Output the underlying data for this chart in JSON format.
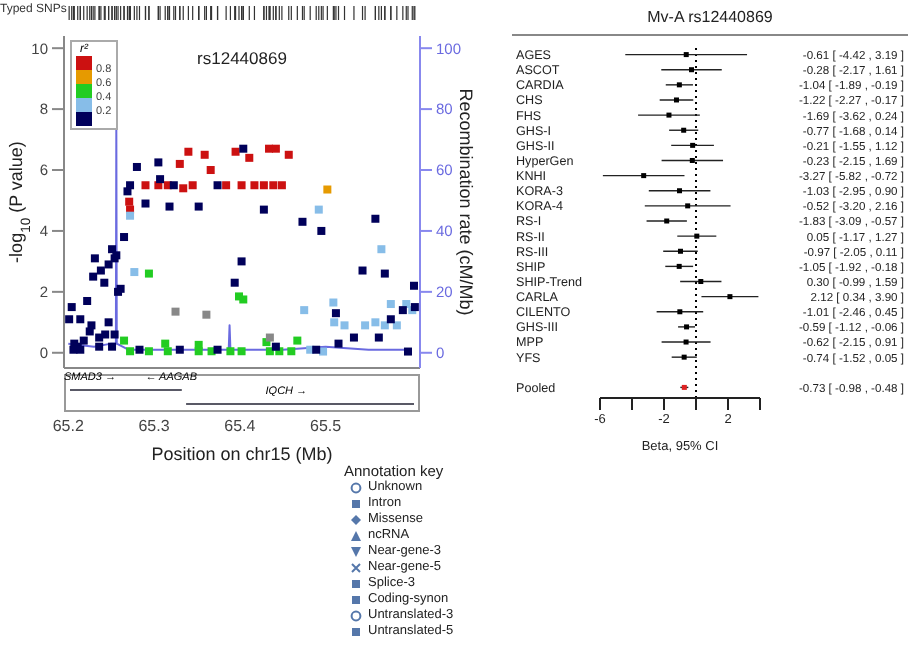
{
  "chart_data": [
    {
      "type": "scatter",
      "title": "rs12440869",
      "xlabel": "Position on chr15 (Mb)",
      "ylabel": "-log$_{10}$ (P value)",
      "y2label": "Recombination rate (cM/Mb)",
      "legend_title": "r²",
      "xlim": [
        65.195,
        65.61
      ],
      "xticks": [
        65.2,
        65.3,
        65.4,
        65.5
      ],
      "ylim": [
        -0.5,
        10.4
      ],
      "yticks": [
        0,
        2,
        4,
        6,
        8,
        10
      ],
      "y2lim": [
        -5,
        104
      ],
      "y2ticks": [
        0,
        20,
        40,
        60,
        80,
        100
      ],
      "annotations": [
        "Typed SNPs",
        "SMAD3 →",
        "← AAGAB",
        "IQCH →",
        "0.8",
        "0.6",
        "0.4",
        "0.2",
        "Annotation key",
        "Unknown",
        "Intron",
        "Missense",
        "ncRNA",
        "Near-gene-3",
        "Near-gene-5",
        "Splice-3",
        "Coding-synon",
        "Untranslated-3",
        "Untranslated-5"
      ],
      "series": [
        {
          "color": "#cc1111",
          "marker": "square",
          "x": [
            65.271,
            65.272,
            65.29,
            65.305,
            65.316,
            65.33,
            65.34,
            65.334,
            65.345,
            65.359,
            65.366,
            65.384,
            65.395,
            65.411,
            65.402,
            65.417,
            65.434,
            65.442,
            65.457,
            65.449,
            65.439,
            65.428
          ],
          "values": [
            4.96,
            4.7,
            5.5,
            5.5,
            5.5,
            6.2,
            6.6,
            5.4,
            5.5,
            6.5,
            6.0,
            5.5,
            6.6,
            6.4,
            5.5,
            5.5,
            6.7,
            6.7,
            6.5,
            5.5,
            5.5,
            5.5
          ]
        },
        {
          "color": "#e69a00",
          "marker": "square",
          "x": [
            65.502
          ],
          "values": [
            5.36
          ]
        },
        {
          "color": "#22cc22",
          "marker": "square",
          "x": [
            65.294,
            65.399,
            65.404,
            65.265,
            65.272,
            65.294,
            65.316,
            65.352,
            65.367,
            65.389,
            65.402,
            65.435,
            65.446,
            65.46,
            65.467,
            65.313,
            65.352,
            65.431
          ],
          "values": [
            2.6,
            1.85,
            1.75,
            0.4,
            0.05,
            0.05,
            0.05,
            0.05,
            0.05,
            0.05,
            0.05,
            0.05,
            0.05,
            0.05,
            0.4,
            0.3,
            0.26,
            0.35
          ]
        },
        {
          "color": "#87bde8",
          "marker": "square",
          "x": [
            65.272,
            65.277,
            65.492,
            65.475,
            65.509,
            65.51,
            65.522,
            65.546,
            65.558,
            65.569,
            65.576,
            65.583,
            65.594,
            65.565,
            65.482,
            65.497,
            65.601
          ],
          "values": [
            4.5,
            2.65,
            4.7,
            1.4,
            1.65,
            1.0,
            0.9,
            0.9,
            1.0,
            0.9,
            1.6,
            0.9,
            1.6,
            3.4,
            0.1,
            0.04,
            1.4
          ]
        },
        {
          "color": "#00005a",
          "marker": "square",
          "x": [
            65.201,
            65.204,
            65.207,
            65.211,
            65.214,
            65.218,
            65.222,
            65.225,
            65.227,
            65.229,
            65.231,
            65.236,
            65.238,
            65.242,
            65.243,
            65.247,
            65.247,
            65.251,
            65.251,
            65.254,
            65.256,
            65.258,
            65.206,
            65.236,
            65.214,
            65.254,
            65.261,
            65.265,
            65.269,
            65.272,
            65.28,
            65.29,
            65.305,
            65.307,
            65.318,
            65.323,
            65.352,
            65.374,
            65.394,
            65.402,
            65.404,
            65.428,
            65.473,
            65.495,
            65.512,
            65.515,
            65.533,
            65.543,
            65.558,
            65.562,
            65.569,
            65.576,
            65.59,
            65.603,
            65.604,
            65.596,
            65.283,
            65.33,
            65.374,
            65.442,
            65.489
          ],
          "values": [
            1.1,
            1.5,
            0.3,
            0.2,
            1.1,
            0.4,
            1.7,
            0.7,
            0.9,
            2.5,
            3.1,
            0.5,
            2.7,
            2.3,
            0.6,
            2.9,
            1.0,
            3.4,
            0.2,
            3.1,
            3.2,
            2.0,
            0.1,
            0.2,
            0.1,
            0.6,
            2.1,
            3.8,
            5.3,
            5.5,
            6.1,
            4.9,
            6.25,
            5.7,
            4.8,
            5.5,
            4.8,
            5.5,
            2.3,
            3.0,
            6.7,
            4.7,
            4.3,
            4.0,
            1.3,
            0.3,
            0.5,
            2.7,
            4.4,
            0.5,
            2.6,
            1.1,
            1.4,
            2.2,
            1.5,
            0.04,
            0.1,
            0.1,
            0.1,
            0.2,
            0.1
          ]
        },
        {
          "color": "#888888",
          "marker": "square",
          "x": [
            65.325,
            65.361,
            65.435
          ],
          "values": [
            1.35,
            1.25,
            0.5
          ]
        },
        {
          "type": "line",
          "axis": "y2",
          "marker": "none",
          "color": "#6a6ae0",
          "x": [
            65.2,
            65.23,
            65.25,
            65.2555,
            65.256,
            65.2565,
            65.27,
            65.3,
            65.35,
            65.387,
            65.388,
            65.389,
            65.45,
            65.5,
            65.55,
            65.6
          ],
          "values": [
            3,
            2,
            3,
            3,
            75,
            3,
            1,
            1,
            1,
            1,
            9,
            1,
            1,
            2,
            1,
            1
          ]
        }
      ]
    },
    {
      "type": "scatter",
      "orientation": "horizontal",
      "title": "Mv-A  rs12440869",
      "xlabel": "Beta, 95% CI",
      "marker": "square",
      "xlim": [
        -6,
        4
      ],
      "xticks": [
        -6,
        {
          "value": -4,
          "label": null
        },
        -2,
        {
          "value": 0,
          "label": null
        },
        2,
        {
          "value": 4,
          "label": null
        }
      ],
      "ref_lines": [
        {
          "axis": "x",
          "value": 0,
          "line_style": "dotted",
          "color": "#000000"
        }
      ],
      "categories": [
        "AGES",
        "ASCOT",
        "CARDIA",
        "CHS",
        "FHS",
        "GHS-I",
        "GHS-II",
        "HyperGen",
        "KNHI",
        "KORA-3",
        "KORA-4",
        "RS-I",
        "RS-II",
        "RS-III",
        "SHIP",
        "SHIP-Trend",
        "CARLA",
        "CILENTO",
        "GHS-III",
        "MPP",
        "YFS",
        null,
        "Pooled"
      ],
      "values": [
        -0.61,
        -0.28,
        -1.04,
        -1.22,
        -1.69,
        -0.77,
        -0.21,
        -0.23,
        -3.27,
        -1.03,
        -0.52,
        -1.83,
        0.05,
        -0.97,
        -1.05,
        0.3,
        2.12,
        -1.01,
        -0.59,
        -0.62,
        -0.74,
        null,
        -0.73
      ],
      "errors": [
        [
          -4.42,
          3.19
        ],
        [
          -2.17,
          1.61
        ],
        [
          -1.89,
          -0.19
        ],
        [
          -2.27,
          -0.17
        ],
        [
          -3.62,
          0.24
        ],
        [
          -1.68,
          0.14
        ],
        [
          -1.55,
          1.12
        ],
        [
          -2.15,
          1.69
        ],
        [
          -5.82,
          -0.72
        ],
        [
          -2.95,
          0.9
        ],
        [
          -3.2,
          2.16
        ],
        [
          -3.09,
          -0.57
        ],
        [
          -1.17,
          1.27
        ],
        [
          -2.05,
          0.11
        ],
        [
          -1.92,
          -0.18
        ],
        [
          -0.99,
          1.59
        ],
        [
          0.34,
          3.9
        ],
        [
          -2.46,
          0.45
        ],
        [
          -1.12,
          -0.06
        ],
        [
          -2.15,
          0.91
        ],
        [
          -1.52,
          0.05
        ],
        null,
        [
          -0.98,
          -0.48
        ]
      ],
      "value_labels": [
        "-0.61 [ -4.42 , 3.19 ]",
        "-0.28 [ -2.17 , 1.61 ]",
        "-1.04 [ -1.89 , -0.19 ]",
        "-1.22 [ -2.27 , -0.17 ]",
        "-1.69 [ -3.62 , 0.24 ]",
        "-0.77 [ -1.68 , 0.14 ]",
        "-0.21 [ -1.55 , 1.12 ]",
        "-0.23 [ -2.15 , 1.69 ]",
        "-3.27 [ -5.82 , -0.72 ]",
        "-1.03 [ -2.95 , 0.90 ]",
        "-0.52 [ -3.20 , 2.16 ]",
        "-1.83 [ -3.09 , -0.57 ]",
        "0.05 [ -1.17 , 1.27 ]",
        "-0.97 [ -2.05 , 0.11 ]",
        "-1.05 [ -1.92 , -0.18 ]",
        "0.30 [ -0.99 , 1.59 ]",
        "2.12 [ 0.34 , 3.90 ]",
        "-1.01 [ -2.46 , 0.45 ]",
        "-0.59 [ -1.12 , -0.06 ]",
        "-0.62 [ -2.15 , 0.91 ]",
        "-0.74 [ -1.52 , 0.05 ]",
        null,
        "-0.73 [ -0.98 , -0.48 ]"
      ],
      "colors": [
        "#000000",
        "#000000",
        "#000000",
        "#000000",
        "#000000",
        "#000000",
        "#000000",
        "#000000",
        "#000000",
        "#000000",
        "#000000",
        "#000000",
        "#000000",
        "#000000",
        "#000000",
        "#000000",
        "#000000",
        "#000000",
        "#000000",
        "#000000",
        "#000000",
        "#000000",
        "#dd2222"
      ]
    }
  ]
}
